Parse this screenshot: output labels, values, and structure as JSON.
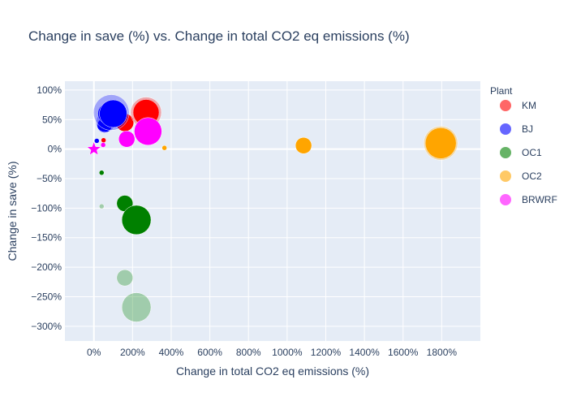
{
  "chart_data": {
    "type": "scatter",
    "title": "Change in save (%) vs. Change in total CO2 eq emissions (%)",
    "xlabel": "Change in total CO2 eq emissions (%)",
    "ylabel": "Change in save (%)",
    "xlim": [
      -150,
      2000
    ],
    "ylim": [
      -325,
      115
    ],
    "xticks": [
      0,
      200,
      400,
      600,
      800,
      1000,
      1200,
      1400,
      1600,
      1800
    ],
    "xtick_labels": [
      "0%",
      "200%",
      "400%",
      "600%",
      "800%",
      "1000%",
      "1200%",
      "1400%",
      "1600%",
      "1800%"
    ],
    "yticks": [
      100,
      50,
      0,
      -50,
      -100,
      -150,
      -200,
      -250,
      -300
    ],
    "ytick_labels": [
      "100%",
      "50%",
      "0%",
      "−50%",
      "−100%",
      "−150%",
      "−200%",
      "−250%",
      "−300%"
    ],
    "grid": true,
    "legend_title": "Plant",
    "legend_position": "right",
    "colors": {
      "KM": "#ff0000",
      "BJ": "#0000ff",
      "OC1": "#008000",
      "OC2": "#ffa500",
      "BRWRF": "#ff00ff",
      "plot_bg": "#e5ecf6",
      "text": "#2a3f5f"
    },
    "series": [
      {
        "name": "KM",
        "color": "#ff0000",
        "points": [
          {
            "x": 50,
            "y": 15,
            "size": 6,
            "opacity": 1
          },
          {
            "x": 160,
            "y": 45,
            "size": 22,
            "opacity": 1
          },
          {
            "x": 270,
            "y": 62,
            "size": 32,
            "opacity": 1
          },
          {
            "x": 270,
            "y": 62,
            "size": 38,
            "opacity": 0.3
          }
        ]
      },
      {
        "name": "BJ",
        "color": "#0000ff",
        "points": [
          {
            "x": 15,
            "y": 14,
            "size": 6,
            "opacity": 1
          },
          {
            "x": 55,
            "y": 40,
            "size": 18,
            "opacity": 1
          },
          {
            "x": 60,
            "y": 45,
            "size": 24,
            "opacity": 0.3
          },
          {
            "x": 75,
            "y": 60,
            "size": 26,
            "opacity": 1
          },
          {
            "x": 90,
            "y": 62,
            "size": 44,
            "opacity": 0.3
          },
          {
            "x": 100,
            "y": 60,
            "size": 34,
            "opacity": 1
          }
        ]
      },
      {
        "name": "OC1",
        "color": "#008000",
        "points": [
          {
            "x": 40,
            "y": -40,
            "size": 6,
            "opacity": 1
          },
          {
            "x": 40,
            "y": -97,
            "size": 6,
            "opacity": 0.3
          },
          {
            "x": 160,
            "y": -92,
            "size": 20,
            "opacity": 1
          },
          {
            "x": 160,
            "y": -218,
            "size": 20,
            "opacity": 0.3
          },
          {
            "x": 220,
            "y": -120,
            "size": 36,
            "opacity": 1
          },
          {
            "x": 220,
            "y": -268,
            "size": 36,
            "opacity": 0.3
          }
        ]
      },
      {
        "name": "OC2",
        "color": "#ffa500",
        "points": [
          {
            "x": 365,
            "y": 2,
            "size": 6,
            "opacity": 1
          },
          {
            "x": 1085,
            "y": 6,
            "size": 20,
            "opacity": 1
          },
          {
            "x": 1795,
            "y": 10,
            "size": 38,
            "opacity": 1
          },
          {
            "x": 1795,
            "y": 10,
            "size": 42,
            "opacity": 0.3
          }
        ]
      },
      {
        "name": "BRWRF",
        "color": "#ff00ff",
        "points": [
          {
            "x": 0,
            "y": 0,
            "size": 18,
            "opacity": 1,
            "symbol": "star"
          },
          {
            "x": 48,
            "y": 7,
            "size": 6,
            "opacity": 1
          },
          {
            "x": 170,
            "y": 17,
            "size": 20,
            "opacity": 1
          },
          {
            "x": 280,
            "y": 30,
            "size": 34,
            "opacity": 1
          }
        ]
      }
    ]
  }
}
